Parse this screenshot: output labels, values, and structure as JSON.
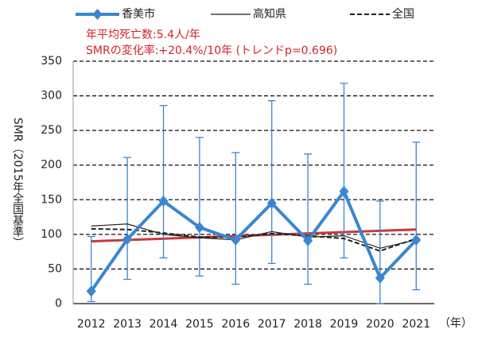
{
  "chart_data": {
    "type": "line",
    "annotations": [
      "年平均死亡数:5.4人/年",
      "SMRの変化率:+20.4%/10年 (トレンドp=0.696)"
    ],
    "y_label": "SMR（2015年全国基準）",
    "x_label": "（年）",
    "categories": [
      "2012",
      "2013",
      "2014",
      "2015",
      "2016",
      "2017",
      "2018",
      "2019",
      "2020",
      "2021"
    ],
    "series": [
      {
        "name": "香美市",
        "color": "#3a86d0",
        "style": "solid-marker",
        "values": [
          18,
          93,
          148,
          110,
          92,
          145,
          91,
          162,
          37,
          92
        ],
        "lower": [
          3,
          35,
          66,
          40,
          28,
          58,
          28,
          66,
          0,
          20
        ],
        "upper": [
          97,
          211,
          286,
          240,
          218,
          293,
          216,
          318,
          148,
          233
        ]
      },
      {
        "name": "高知県",
        "color": "#222222",
        "style": "solid",
        "values": [
          112,
          115,
          100,
          95,
          92,
          104,
          96,
          98,
          80,
          92
        ]
      },
      {
        "name": "全国",
        "color": "#222222",
        "style": "dashed",
        "values": [
          108,
          107,
          102,
          96,
          96,
          101,
          98,
          94,
          76,
          94
        ]
      }
    ],
    "trend": {
      "color": "#c83a3a",
      "values": [
        90,
        107
      ]
    },
    "ylim": [
      0,
      350
    ],
    "yticks": [
      0,
      50,
      100,
      150,
      200,
      250,
      300,
      350
    ],
    "grid": true
  }
}
